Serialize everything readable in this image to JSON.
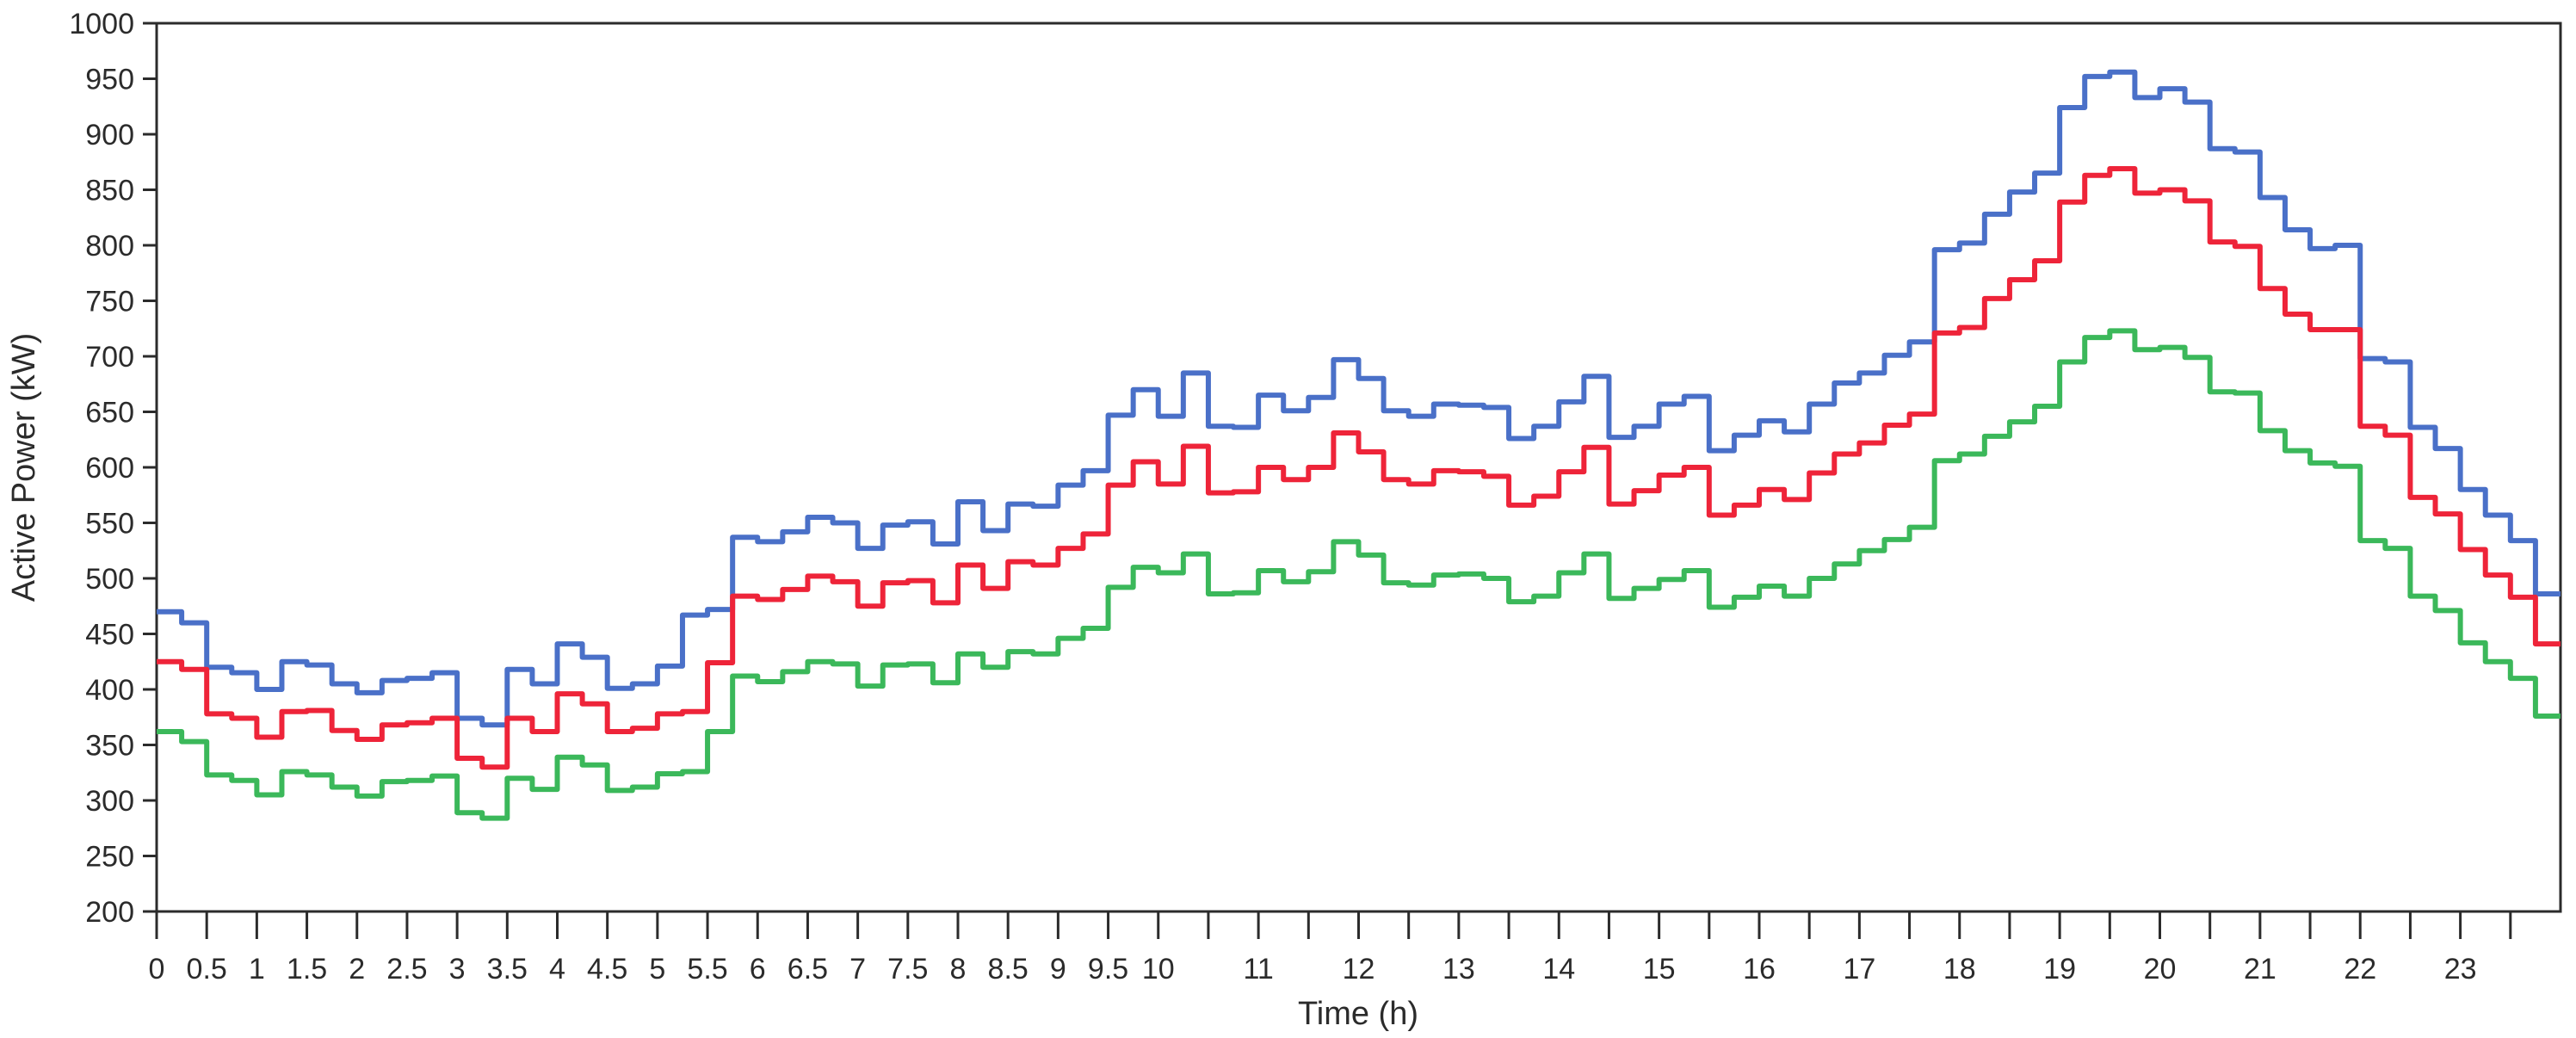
{
  "chart_data": {
    "type": "line",
    "subtype": "step-15min",
    "title": "",
    "xlabel": "Time (h)",
    "ylabel": "Active Power (kW)",
    "x_start": 0,
    "x_step_hours": 0.25,
    "x_end": 24,
    "xlim": [
      0,
      24
    ],
    "ylim": [
      200,
      1000
    ],
    "y_tick_step": 50,
    "x_tick_step": 0.5,
    "grid": "off",
    "legend": "none",
    "axis_color": "#2b2b2b",
    "x_tick_label_values": [
      0,
      0.5,
      1,
      1.5,
      2,
      2.5,
      3,
      3.5,
      4,
      4.5,
      5,
      5.5,
      6,
      6.5,
      7,
      7.5,
      8,
      8.5,
      9,
      9.5,
      10,
      11,
      12,
      13,
      14,
      15,
      16,
      17,
      18,
      19,
      20,
      21,
      22,
      23
    ],
    "x_tick_label_texts": [
      "0",
      "0.5",
      "1",
      "1.5",
      "2",
      "2.5",
      "3",
      "3.5",
      "4",
      "4.5",
      "5",
      "5.5",
      "6",
      "6.5",
      "7",
      "7.5",
      "8",
      "8.5",
      "9",
      "9.5",
      "10",
      "11",
      "12",
      "13",
      "14",
      "15",
      "16",
      "17",
      "18",
      "19",
      "20",
      "21",
      "22",
      "23"
    ],
    "y_tick_label_values": [
      200,
      250,
      300,
      350,
      400,
      450,
      500,
      550,
      600,
      650,
      700,
      750,
      800,
      850,
      900,
      950,
      1000
    ],
    "y_tick_label_texts": [
      "200",
      "250",
      "300",
      "350",
      "400",
      "450",
      "500",
      "550",
      "600",
      "650",
      "700",
      "750",
      "800",
      "850",
      "900",
      "950",
      "1000"
    ],
    "series": [
      {
        "name": "upper-blue-series",
        "color": "#4a70c8",
        "values": [
          470,
          460,
          420,
          415,
          400,
          425,
          422,
          405,
          397,
          408,
          410,
          415,
          374,
          368,
          418,
          405,
          441,
          429,
          401,
          405,
          421,
          467,
          472,
          537,
          533,
          542,
          555,
          550,
          527,
          548,
          551,
          531,
          569,
          543,
          567,
          565,
          584,
          597,
          647,
          670,
          646,
          685,
          637,
          636,
          665,
          651,
          663,
          697,
          680,
          651,
          646,
          657,
          656,
          654,
          626,
          637,
          659,
          682,
          627,
          637,
          657,
          664,
          615,
          629,
          642,
          632,
          657,
          676,
          685,
          701,
          713,
          796,
          802,
          828,
          848,
          865,
          924,
          952,
          956,
          933,
          941,
          929,
          887,
          884,
          843,
          814,
          797,
          800,
          698,
          695,
          636,
          617,
          580,
          557,
          534,
          486
        ]
      },
      {
        "name": "middle-red-series",
        "color": "#ee2439",
        "values": [
          425,
          418,
          378,
          374,
          357,
          380,
          381,
          363,
          355,
          368,
          370,
          374,
          338,
          330,
          374,
          362,
          396,
          387,
          362,
          365,
          378,
          380,
          424,
          484,
          481,
          490,
          502,
          497,
          475,
          496,
          498,
          478,
          512,
          491,
          515,
          512,
          527,
          540,
          584,
          605,
          585,
          619,
          577,
          578,
          600,
          589,
          600,
          631,
          614,
          589,
          585,
          597,
          596,
          592,
          566,
          574,
          596,
          618,
          567,
          579,
          593,
          600,
          557,
          566,
          580,
          571,
          595,
          612,
          622,
          638,
          648,
          721,
          726,
          752,
          769,
          786,
          839,
          863,
          869,
          847,
          850,
          840,
          803,
          799,
          761,
          738,
          724,
          724,
          637,
          629,
          573,
          558,
          526,
          503,
          483,
          441
        ]
      },
      {
        "name": "lower-green-series",
        "color": "#3bb85a",
        "values": [
          362,
          353,
          323,
          318,
          305,
          326,
          323,
          312,
          304,
          317,
          318,
          322,
          289,
          284,
          320,
          310,
          339,
          332,
          309,
          312,
          324,
          326,
          362,
          412,
          407,
          416,
          425,
          423,
          403,
          422,
          423,
          406,
          432,
          420,
          434,
          432,
          446,
          455,
          492,
          510,
          505,
          522,
          486,
          487,
          507,
          497,
          506,
          533,
          521,
          496,
          494,
          503,
          504,
          500,
          479,
          484,
          505,
          522,
          482,
          491,
          499,
          507,
          474,
          483,
          493,
          484,
          500,
          513,
          525,
          535,
          546,
          606,
          612,
          628,
          641,
          655,
          695,
          717,
          723,
          706,
          708,
          699,
          668,
          667,
          633,
          615,
          604,
          601,
          534,
          527,
          484,
          471,
          442,
          425,
          410,
          376
        ]
      }
    ]
  }
}
